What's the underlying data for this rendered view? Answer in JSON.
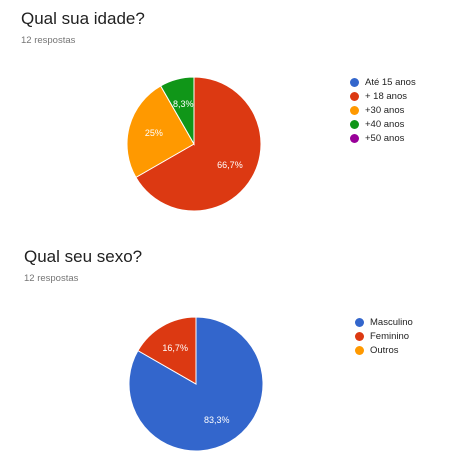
{
  "chart_data": [
    {
      "type": "pie",
      "title": "Qual sua idade?",
      "subtitle": "12 respostas",
      "categories": [
        "Até 15 anos",
        "+ 18 anos",
        "+30 anos",
        "+40 anos",
        "+50 anos"
      ],
      "values": [
        0,
        66.7,
        25,
        8.3,
        0
      ],
      "labels": [
        "",
        "66,7%",
        "25%",
        "8,3%",
        ""
      ],
      "colors": [
        "#3366cc",
        "#dc3912",
        "#ff9900",
        "#109618",
        "#990099"
      ],
      "legend_position": "right"
    },
    {
      "type": "pie",
      "title": "Qual seu sexo?",
      "subtitle": "12 respostas",
      "categories": [
        "Masculino",
        "Feminino",
        "Outros"
      ],
      "values": [
        83.3,
        16.7,
        0
      ],
      "labels": [
        "83,3%",
        "16,7%",
        ""
      ],
      "colors": [
        "#3366cc",
        "#dc3912",
        "#ff9900"
      ],
      "legend_position": "right"
    }
  ]
}
